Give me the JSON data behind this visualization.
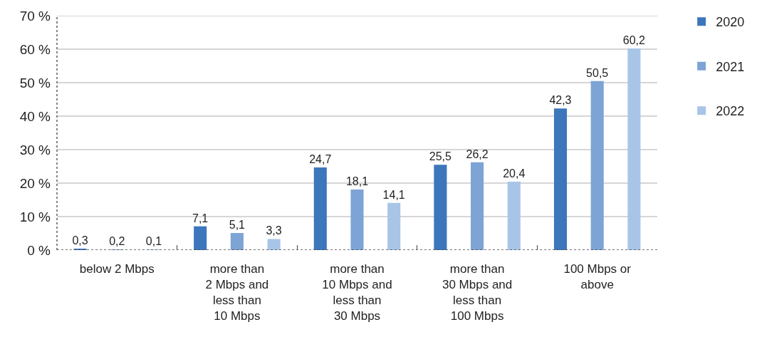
{
  "chart_data": {
    "type": "bar",
    "categories": [
      "below 2 Mbps",
      "more than\n2 Mbps and\nless than\n10 Mbps",
      "more than\n10 Mbps and\nless than\n30 Mbps",
      "more than\n30 Mbps and\nless than\n100 Mbps",
      "100 Mbps or\nabove"
    ],
    "series": [
      {
        "name": "2020",
        "color": "#3c76bb",
        "values": [
          0.3,
          7.1,
          24.7,
          25.5,
          42.3
        ],
        "value_labels": [
          "0,3",
          "7,1",
          "24,7",
          "25,5",
          "42,3"
        ]
      },
      {
        "name": "2021",
        "color": "#7ea3d5",
        "values": [
          0.2,
          5.1,
          18.1,
          26.2,
          50.5
        ],
        "value_labels": [
          "0,2",
          "5,1",
          "18,1",
          "26,2",
          "50,5"
        ]
      },
      {
        "name": "2022",
        "color": "#a8c5e8",
        "values": [
          0.1,
          3.3,
          14.1,
          20.4,
          60.2
        ],
        "value_labels": [
          "0,1",
          "3,3",
          "14,1",
          "20,4",
          "60,2"
        ]
      }
    ],
    "ylim": [
      0,
      70
    ],
    "yticks": [
      {
        "value": 0,
        "label": "0 %"
      },
      {
        "value": 10,
        "label": "10 %"
      },
      {
        "value": 20,
        "label": "20 %"
      },
      {
        "value": 30,
        "label": "30 %"
      },
      {
        "value": 40,
        "label": "40 %"
      },
      {
        "value": 50,
        "label": "50 %"
      },
      {
        "value": 60,
        "label": "60 %"
      },
      {
        "value": 70,
        "label": "70 %"
      }
    ],
    "grid": "y",
    "legend": "top right"
  }
}
